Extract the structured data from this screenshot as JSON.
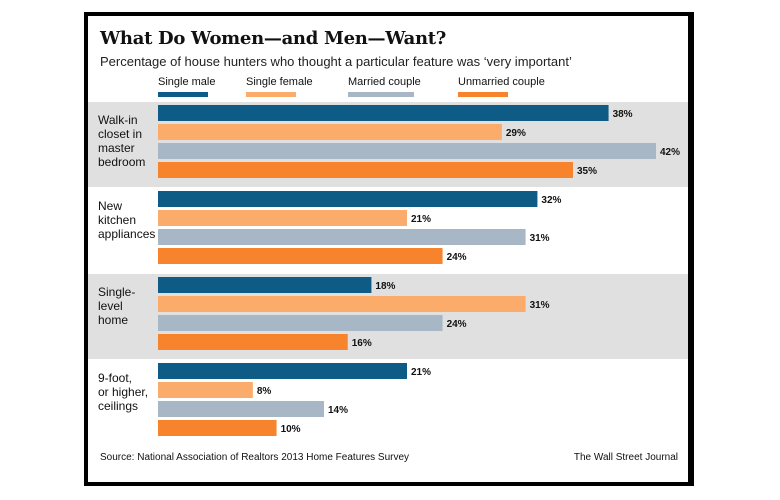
{
  "chart_data": {
    "type": "bar",
    "orientation": "horizontal",
    "title": "What Do Women—and Men—Want?",
    "subtitle": "Percentage of house hunters who thought a particular feature was ‘very important’",
    "categories": [
      [
        "Walk-in",
        "closet in",
        "master",
        "bedroom"
      ],
      [
        "New",
        "kitchen",
        "appliances"
      ],
      [
        "Single-",
        "level",
        "home"
      ],
      [
        "9-foot,",
        "or higher,",
        "ceilings"
      ]
    ],
    "series": [
      {
        "name": "Single male",
        "color": "#0e5b86",
        "values": [
          38,
          32,
          18,
          21
        ]
      },
      {
        "name": "Single female",
        "color": "#fbac6a",
        "values": [
          29,
          21,
          31,
          8
        ]
      },
      {
        "name": "Married couple",
        "color": "#a8b7c5",
        "values": [
          42,
          31,
          24,
          14
        ]
      },
      {
        "name": "Unmarried couple",
        "color": "#f7842c",
        "values": [
          35,
          24,
          16,
          10
        ]
      }
    ],
    "value_suffix": "%",
    "xlim": [
      0,
      42
    ],
    "band_colors": [
      "#e0e0e0",
      "#ffffff"
    ],
    "grid": false,
    "legend_position": "top",
    "source": "Source: National Association of Realtors 2013 Home Features Survey",
    "credit": "The Wall Street Journal"
  }
}
